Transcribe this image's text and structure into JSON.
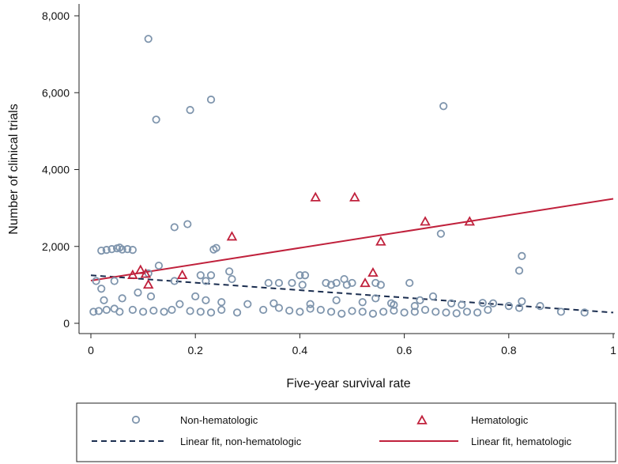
{
  "chart_data": {
    "type": "scatter",
    "title": "",
    "xlabel": "Five-year survival rate",
    "ylabel": "Number of clinical trials",
    "xlim": [
      0,
      1
    ],
    "ylim": [
      0,
      8000
    ],
    "x_ticks": [
      0,
      0.2,
      0.4,
      0.6,
      0.8,
      1
    ],
    "x_tick_labels": [
      "0",
      "0.2",
      "0.4",
      "0.6",
      "0.8",
      "1"
    ],
    "y_ticks": [
      0,
      2000,
      4000,
      6000,
      8000
    ],
    "y_tick_labels": [
      "0",
      "2,000",
      "4,000",
      "6,000",
      "8,000"
    ],
    "grid": false,
    "legend_position": "bottom",
    "colors": {
      "non_hematologic": "#7f95ad",
      "hematologic": "#c0213c",
      "fit_non_hematologic": "#1a2d4f",
      "fit_hematologic": "#c0213c"
    },
    "series": [
      {
        "name": "Non-hematologic",
        "kind": "scatter",
        "marker": "circle",
        "points": [
          [
            0.11,
            7400
          ],
          [
            0.125,
            5300
          ],
          [
            0.19,
            5550
          ],
          [
            0.23,
            5820
          ],
          [
            0.675,
            5650
          ],
          [
            0.16,
            2500
          ],
          [
            0.185,
            2580
          ],
          [
            0.235,
            1920
          ],
          [
            0.24,
            1960
          ],
          [
            0.67,
            2330
          ],
          [
            0.825,
            1750
          ],
          [
            0.82,
            1370
          ],
          [
            0.02,
            1890
          ],
          [
            0.03,
            1910
          ],
          [
            0.04,
            1930
          ],
          [
            0.05,
            1950
          ],
          [
            0.055,
            1970
          ],
          [
            0.06,
            1920
          ],
          [
            0.07,
            1930
          ],
          [
            0.08,
            1910
          ],
          [
            0.01,
            1100
          ],
          [
            0.02,
            900
          ],
          [
            0.045,
            1100
          ],
          [
            0.11,
            1300
          ],
          [
            0.13,
            1500
          ],
          [
            0.16,
            1100
          ],
          [
            0.21,
            1250
          ],
          [
            0.22,
            1100
          ],
          [
            0.23,
            1250
          ],
          [
            0.265,
            1350
          ],
          [
            0.27,
            1150
          ],
          [
            0.34,
            1050
          ],
          [
            0.36,
            1050
          ],
          [
            0.385,
            1050
          ],
          [
            0.4,
            1250
          ],
          [
            0.41,
            1250
          ],
          [
            0.405,
            1000
          ],
          [
            0.45,
            1050
          ],
          [
            0.46,
            1000
          ],
          [
            0.47,
            1050
          ],
          [
            0.485,
            1150
          ],
          [
            0.49,
            1000
          ],
          [
            0.5,
            1050
          ],
          [
            0.545,
            1050
          ],
          [
            0.555,
            1000
          ],
          [
            0.61,
            1050
          ],
          [
            0.545,
            650
          ],
          [
            0.575,
            520
          ],
          [
            0.63,
            600
          ],
          [
            0.655,
            700
          ],
          [
            0.69,
            520
          ],
          [
            0.71,
            480
          ],
          [
            0.75,
            530
          ],
          [
            0.77,
            520
          ],
          [
            0.8,
            450
          ],
          [
            0.825,
            570
          ],
          [
            0.025,
            600
          ],
          [
            0.06,
            650
          ],
          [
            0.09,
            800
          ],
          [
            0.115,
            700
          ],
          [
            0.17,
            500
          ],
          [
            0.2,
            700
          ],
          [
            0.22,
            600
          ],
          [
            0.25,
            550
          ],
          [
            0.3,
            500
          ],
          [
            0.35,
            520
          ],
          [
            0.42,
            500
          ],
          [
            0.47,
            600
          ],
          [
            0.52,
            550
          ],
          [
            0.58,
            480
          ],
          [
            0.62,
            450
          ],
          [
            0.005,
            300
          ],
          [
            0.015,
            320
          ],
          [
            0.03,
            350
          ],
          [
            0.045,
            380
          ],
          [
            0.055,
            300
          ],
          [
            0.08,
            350
          ],
          [
            0.1,
            300
          ],
          [
            0.12,
            330
          ],
          [
            0.14,
            300
          ],
          [
            0.155,
            350
          ],
          [
            0.19,
            320
          ],
          [
            0.21,
            300
          ],
          [
            0.23,
            280
          ],
          [
            0.25,
            350
          ],
          [
            0.28,
            280
          ],
          [
            0.33,
            350
          ],
          [
            0.36,
            400
          ],
          [
            0.38,
            330
          ],
          [
            0.4,
            300
          ],
          [
            0.42,
            380
          ],
          [
            0.44,
            350
          ],
          [
            0.46,
            300
          ],
          [
            0.48,
            250
          ],
          [
            0.5,
            320
          ],
          [
            0.52,
            300
          ],
          [
            0.54,
            250
          ],
          [
            0.56,
            300
          ],
          [
            0.58,
            330
          ],
          [
            0.6,
            280
          ],
          [
            0.62,
            300
          ],
          [
            0.64,
            350
          ],
          [
            0.66,
            300
          ],
          [
            0.68,
            280
          ],
          [
            0.7,
            260
          ],
          [
            0.72,
            300
          ],
          [
            0.74,
            280
          ],
          [
            0.76,
            350
          ],
          [
            0.82,
            400
          ],
          [
            0.86,
            450
          ],
          [
            0.9,
            300
          ],
          [
            0.945,
            280
          ]
        ]
      },
      {
        "name": "Hematologic",
        "kind": "scatter",
        "marker": "triangle",
        "points": [
          [
            0.08,
            1250
          ],
          [
            0.095,
            1380
          ],
          [
            0.105,
            1280
          ],
          [
            0.11,
            1000
          ],
          [
            0.175,
            1250
          ],
          [
            0.27,
            2250
          ],
          [
            0.43,
            3270
          ],
          [
            0.505,
            3270
          ],
          [
            0.525,
            1040
          ],
          [
            0.54,
            1310
          ],
          [
            0.555,
            2120
          ],
          [
            0.64,
            2640
          ],
          [
            0.725,
            2640
          ]
        ]
      },
      {
        "name": "Linear fit, non-hematologic",
        "kind": "line",
        "style": "dashed",
        "points": [
          [
            0.0,
            1250
          ],
          [
            1.0,
            280
          ]
        ]
      },
      {
        "name": "Linear fit, hematologic",
        "kind": "line",
        "style": "solid",
        "points": [
          [
            0.0,
            1110
          ],
          [
            1.0,
            3240
          ]
        ]
      }
    ]
  }
}
